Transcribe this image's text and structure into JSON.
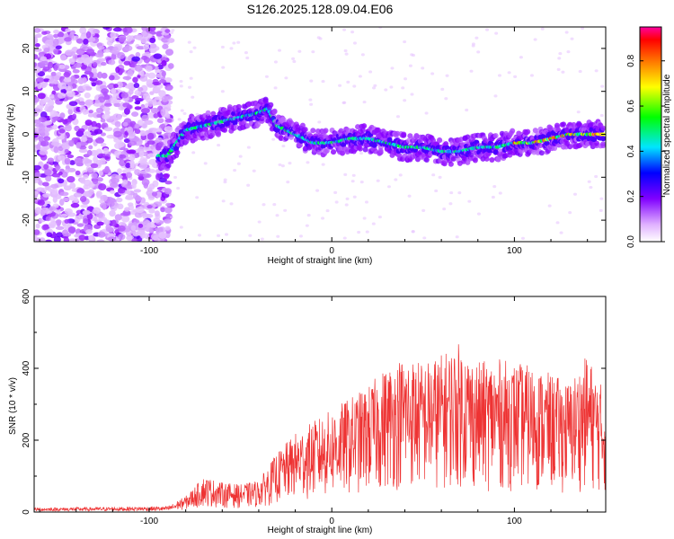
{
  "title": "S126.2025.128.09.04.E06",
  "chart_data": [
    {
      "type": "heatmap",
      "xlabel": "Height of straight line (km)",
      "ylabel": "Frequency (Hz)",
      "xlim": [
        -163,
        150
      ],
      "ylim": [
        -25,
        25
      ],
      "x_ticks": [
        -100,
        0,
        100
      ],
      "y_ticks": [
        -20,
        -10,
        0,
        10,
        20
      ],
      "colorbar": {
        "label": "Normalized spectral amplitude",
        "range": [
          0,
          0.95
        ],
        "ticks": [
          0.0,
          0.2,
          0.4,
          0.6,
          0.8
        ],
        "colors": [
          "#ffffff",
          "#8000ff",
          "#0000ff",
          "#00e5ff",
          "#00ff00",
          "#ffff00",
          "#ff0000",
          "#ff00a0"
        ]
      },
      "ridge": {
        "x": [
          -90,
          -80,
          -70,
          -60,
          -50,
          -40,
          -35,
          -30,
          -20,
          -10,
          0,
          10,
          20,
          30,
          40,
          50,
          60,
          70,
          80,
          90,
          100,
          110,
          120,
          130,
          140,
          148
        ],
        "y": [
          -5,
          1,
          2,
          3,
          4,
          5,
          6,
          2,
          0,
          -2,
          -2,
          -1,
          -1,
          -2,
          -3,
          -3,
          -4,
          -4,
          -3,
          -3,
          -2,
          -2,
          -1,
          0,
          0,
          0
        ]
      }
    },
    {
      "type": "line",
      "xlabel": "Height of straight line (km)",
      "ylabel": "SNR (10 * v/v)",
      "xlim": [
        -163,
        150
      ],
      "ylim": [
        0,
        600
      ],
      "x_ticks": [
        -100,
        0,
        100
      ],
      "y_ticks": [
        0,
        200,
        400,
        600
      ],
      "series_color": "#ee3333",
      "envelope": {
        "x": [
          -163,
          -120,
          -90,
          -80,
          -70,
          -60,
          -50,
          -40,
          -30,
          -20,
          -10,
          0,
          10,
          20,
          30,
          40,
          50,
          60,
          70,
          80,
          90,
          100,
          110,
          120,
          130,
          140,
          150
        ],
        "y": [
          12,
          14,
          16,
          40,
          90,
          75,
          70,
          80,
          150,
          200,
          230,
          260,
          290,
          320,
          370,
          400,
          380,
          400,
          430,
          380,
          390,
          380,
          370,
          350,
          330,
          400,
          300
        ]
      }
    }
  ]
}
